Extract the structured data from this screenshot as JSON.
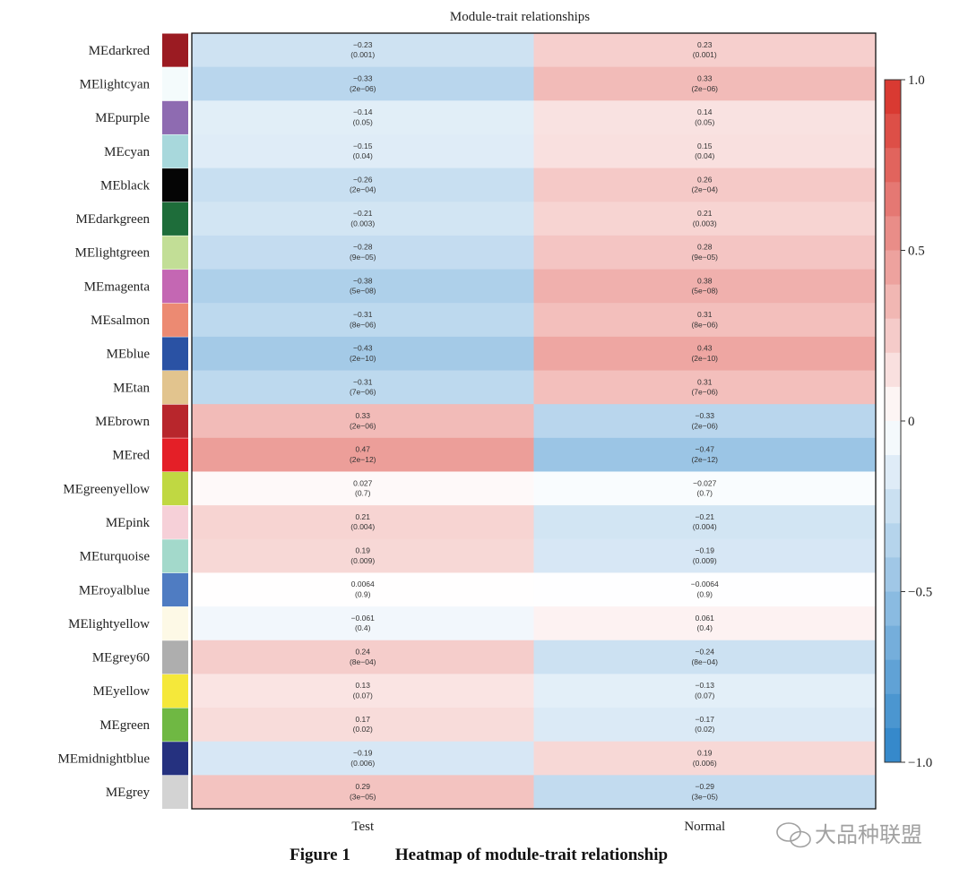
{
  "chart_data": {
    "type": "heatmap",
    "title": "Module-trait relationships",
    "columns": [
      "Test",
      "Normal"
    ],
    "rows": [
      {
        "module": "MEdarkred",
        "color": "#9b1b22",
        "test": {
          "r": "−0.23",
          "p": "(0.001)",
          "v": -0.23
        },
        "normal": {
          "r": "0.23",
          "p": "(0.001)",
          "v": 0.23
        }
      },
      {
        "module": "MElightcyan",
        "color": "#f4fbfc",
        "test": {
          "r": "−0.33",
          "p": "(2e−06)",
          "v": -0.33
        },
        "normal": {
          "r": "0.33",
          "p": "(2e−06)",
          "v": 0.33
        }
      },
      {
        "module": "MEpurple",
        "color": "#8e6bb1",
        "test": {
          "r": "−0.14",
          "p": "(0.05)",
          "v": -0.14
        },
        "normal": {
          "r": "0.14",
          "p": "(0.05)",
          "v": 0.14
        }
      },
      {
        "module": "MEcyan",
        "color": "#a8d8dc",
        "test": {
          "r": "−0.15",
          "p": "(0.04)",
          "v": -0.15
        },
        "normal": {
          "r": "0.15",
          "p": "(0.04)",
          "v": 0.15
        }
      },
      {
        "module": "MEblack",
        "color": "#050505",
        "test": {
          "r": "−0.26",
          "p": "(2e−04)",
          "v": -0.26
        },
        "normal": {
          "r": "0.26",
          "p": "(2e−04)",
          "v": 0.26
        }
      },
      {
        "module": "MEdarkgreen",
        "color": "#1e6d3a",
        "test": {
          "r": "−0.21",
          "p": "(0.003)",
          "v": -0.21
        },
        "normal": {
          "r": "0.21",
          "p": "(0.003)",
          "v": 0.21
        }
      },
      {
        "module": "MElightgreen",
        "color": "#c2de96",
        "test": {
          "r": "−0.28",
          "p": "(9e−05)",
          "v": -0.28
        },
        "normal": {
          "r": "0.28",
          "p": "(9e−05)",
          "v": 0.28
        }
      },
      {
        "module": "MEmagenta",
        "color": "#c467b3",
        "test": {
          "r": "−0.38",
          "p": "(5e−08)",
          "v": -0.38
        },
        "normal": {
          "r": "0.38",
          "p": "(5e−08)",
          "v": 0.38
        }
      },
      {
        "module": "MEsalmon",
        "color": "#ec8a72",
        "test": {
          "r": "−0.31",
          "p": "(8e−06)",
          "v": -0.31
        },
        "normal": {
          "r": "0.31",
          "p": "(8e−06)",
          "v": 0.31
        }
      },
      {
        "module": "MEblue",
        "color": "#2a52a4",
        "test": {
          "r": "−0.43",
          "p": "(2e−10)",
          "v": -0.43
        },
        "normal": {
          "r": "0.43",
          "p": "(2e−10)",
          "v": 0.43
        }
      },
      {
        "module": "MEtan",
        "color": "#e2c48e",
        "test": {
          "r": "−0.31",
          "p": "(7e−06)",
          "v": -0.31
        },
        "normal": {
          "r": "0.31",
          "p": "(7e−06)",
          "v": 0.31
        }
      },
      {
        "module": "MEbrown",
        "color": "#b8262c",
        "test": {
          "r": "0.33",
          "p": "(2e−06)",
          "v": 0.33
        },
        "normal": {
          "r": "−0.33",
          "p": "(2e−06)",
          "v": -0.33
        }
      },
      {
        "module": "MEred",
        "color": "#e41f27",
        "test": {
          "r": "0.47",
          "p": "(2e−12)",
          "v": 0.47
        },
        "normal": {
          "r": "−0.47",
          "p": "(2e−12)",
          "v": -0.47
        }
      },
      {
        "module": "MEgreenyellow",
        "color": "#c0d842",
        "test": {
          "r": "0.027",
          "p": "(0.7)",
          "v": 0.027
        },
        "normal": {
          "r": "−0.027",
          "p": "(0.7)",
          "v": -0.027
        }
      },
      {
        "module": "MEpink",
        "color": "#f6d0d8",
        "test": {
          "r": "0.21",
          "p": "(0.004)",
          "v": 0.21
        },
        "normal": {
          "r": "−0.21",
          "p": "(0.004)",
          "v": -0.21
        }
      },
      {
        "module": "MEturquoise",
        "color": "#a3d9cb",
        "test": {
          "r": "0.19",
          "p": "(0.009)",
          "v": 0.19
        },
        "normal": {
          "r": "−0.19",
          "p": "(0.009)",
          "v": -0.19
        }
      },
      {
        "module": "MEroyalblue",
        "color": "#4f7cc2",
        "test": {
          "r": "0.0064",
          "p": "(0.9)",
          "v": 0.0064
        },
        "normal": {
          "r": "−0.0064",
          "p": "(0.9)",
          "v": -0.0064
        }
      },
      {
        "module": "MElightyellow",
        "color": "#fdf9e6",
        "test": {
          "r": "−0.061",
          "p": "(0.4)",
          "v": -0.061
        },
        "normal": {
          "r": "0.061",
          "p": "(0.4)",
          "v": 0.061
        }
      },
      {
        "module": "MEgrey60",
        "color": "#aeaeae",
        "test": {
          "r": "0.24",
          "p": "(8e−04)",
          "v": 0.24
        },
        "normal": {
          "r": "−0.24",
          "p": "(8e−04)",
          "v": -0.24
        }
      },
      {
        "module": "MEyellow",
        "color": "#f5e83a",
        "test": {
          "r": "0.13",
          "p": "(0.07)",
          "v": 0.13
        },
        "normal": {
          "r": "−0.13",
          "p": "(0.07)",
          "v": -0.13
        }
      },
      {
        "module": "MEgreen",
        "color": "#6fb843",
        "test": {
          "r": "0.17",
          "p": "(0.02)",
          "v": 0.17
        },
        "normal": {
          "r": "−0.17",
          "p": "(0.02)",
          "v": -0.17
        }
      },
      {
        "module": "MEmidnightblue",
        "color": "#25317f",
        "test": {
          "r": "−0.19",
          "p": "(0.006)",
          "v": -0.19
        },
        "normal": {
          "r": "0.19",
          "p": "(0.006)",
          "v": 0.19
        }
      },
      {
        "module": "MEgrey",
        "color": "#d3d3d3",
        "test": {
          "r": "0.29",
          "p": "(3e−05)",
          "v": 0.29
        },
        "normal": {
          "r": "−0.29",
          "p": "(3e−05)",
          "v": -0.29
        }
      }
    ],
    "colorbar": {
      "range": [
        -1.0,
        1.0
      ],
      "ticks": [
        {
          "value": 1.0,
          "label": "1.0"
        },
        {
          "value": 0.5,
          "label": "0.5"
        },
        {
          "value": 0,
          "label": "0"
        },
        {
          "value": -0.5,
          "label": "−0.5"
        },
        {
          "value": -1.0,
          "label": "−1.0"
        }
      ],
      "steps": 20,
      "negative_color": "#2b83c8",
      "positive_color": "#d73027",
      "neutral_color": "#ffffff"
    }
  },
  "caption": {
    "label": "Figure 1",
    "text": "Heatmap of module-trait relationship"
  },
  "watermark": {
    "text": "大品种联盟"
  }
}
